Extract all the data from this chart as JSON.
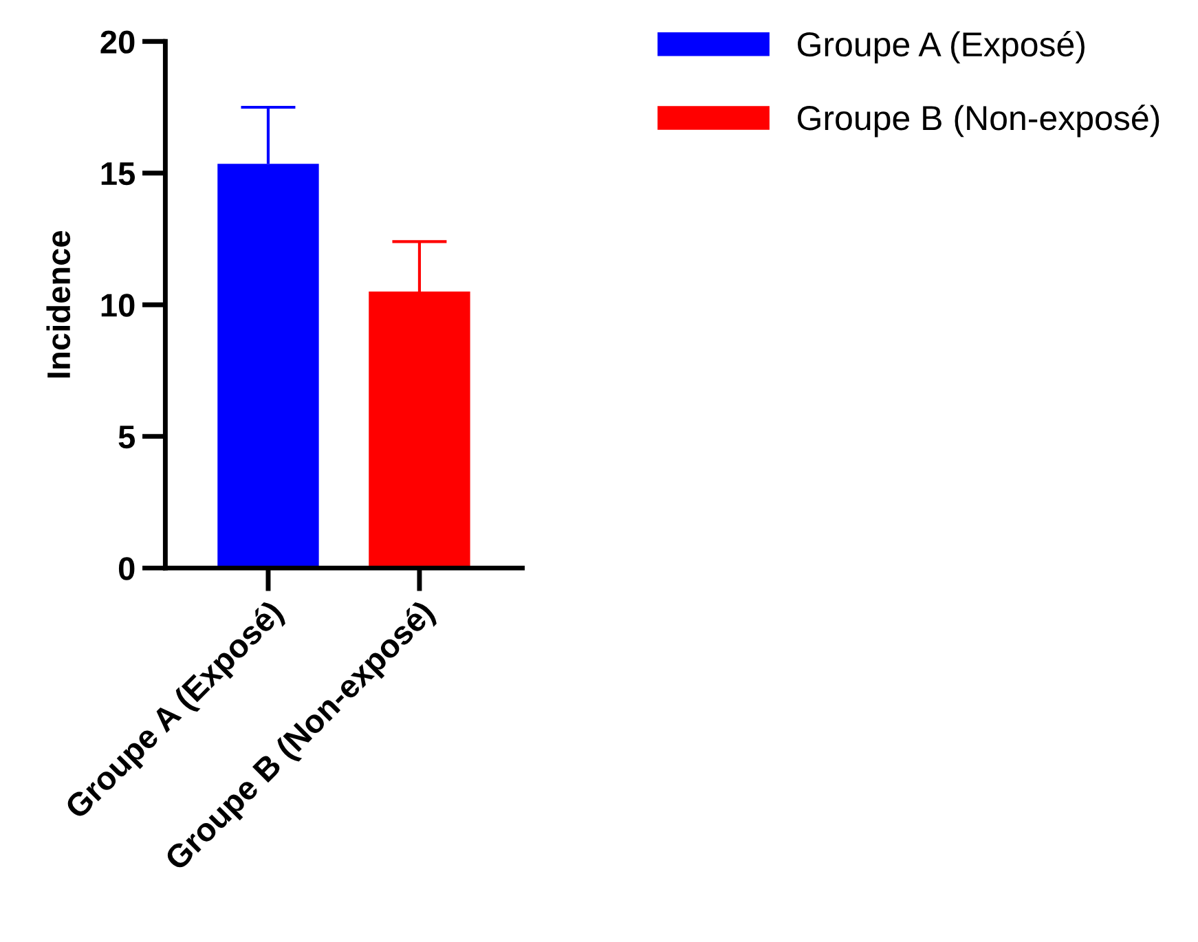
{
  "chart_data": {
    "type": "bar",
    "ylabel": "Incidence",
    "categories": [
      "Groupe A (Exposé)",
      "Groupe B (Non-exposé)"
    ],
    "series": [
      {
        "name": "Groupe A (Exposé)",
        "color": "#0000ff",
        "values": [
          15.35,
          null
        ],
        "errors": [
          [
            15.35,
            17.5
          ],
          null
        ]
      },
      {
        "name": "Groupe B (Non-exposé)",
        "color": "#ff0000",
        "values": [
          null,
          10.5
        ],
        "errors": [
          null,
          [
            10.5,
            12.4
          ]
        ]
      }
    ],
    "ylim": [
      0,
      20
    ],
    "yticks": [
      0,
      5,
      10,
      15,
      20
    ],
    "grid": false,
    "legend": "top right"
  }
}
